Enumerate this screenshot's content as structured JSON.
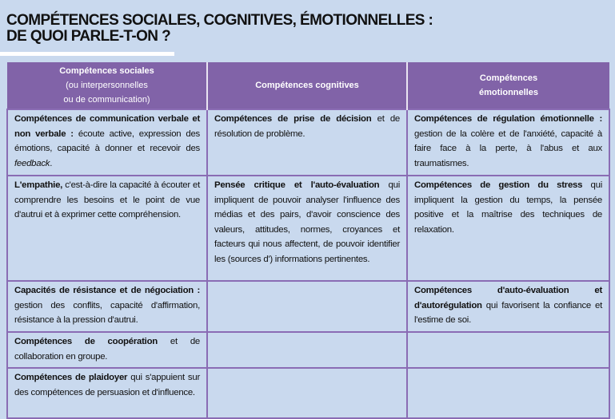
{
  "title": {
    "line1": "COMPÉTENCES SOCIALES, COGNITIVES, ÉMOTIONNELLES :",
    "line2": "DE QUOI PARLE-T-ON ?"
  },
  "colors": {
    "background": "#c9d9ee",
    "header": "#8163a8",
    "border": "#8a6cb4"
  },
  "headers": [
    {
      "l1": "Compétences sociales",
      "l2": "(ou interpersonnelles",
      "l3": "ou de communication)"
    },
    {
      "l1": "Compétences cognitives"
    },
    {
      "l1": "Compétences",
      "l2": "émotionnelles"
    }
  ],
  "rows": [
    [
      {
        "bold": "Compétences de communication verbale et non verbale :",
        "text": " écoute active, expression des émotions, capacité à donner et recevoir des ",
        "italic": "feedback",
        "tail": "."
      },
      {
        "bold": "Compétences de prise de décision",
        "text": " et de résolution de problème."
      },
      {
        "bold": "Compétences de régulation émotionnelle :",
        "text": " gestion de la colère et de l'anxiété, capacité à faire face à la perte, à l'abus et aux traumatismes."
      }
    ],
    [
      {
        "bold": "L'empathie,",
        "text": " c'est-à-dire la capacité à écouter et comprendre les besoins et le point de vue d'autrui et à exprimer cette compréhension."
      },
      {
        "bold": "Pensée critique et l'auto-évaluation",
        "text": " qui impliquent de pouvoir analyser l'influence des médias et des pairs, d'avoir conscience des valeurs, attitudes, normes, croyances et facteurs qui nous affectent, de pouvoir identifier les (sources d') informations pertinentes."
      },
      {
        "bold": "Compétences de gestion du stress",
        "text": " qui impliquent la gestion du temps, la pensée positive et la maîtrise des techniques de relaxation."
      }
    ],
    [
      {
        "bold": "Capacités de résistance et de négociation :",
        "text": " gestion des conflits, capacité d'affirmation, résistance à la pression d'autrui."
      },
      {},
      {
        "bold": "Compétences d'auto-évaluation et d'autorégulation",
        "text": " qui favorisent la confiance et l'estime de soi."
      }
    ],
    [
      {
        "bold": "Compétences de coopération",
        "text": " et de collaboration en groupe."
      },
      {},
      {}
    ],
    [
      {
        "bold": "Compétences de plaidoyer",
        "text": " qui s'appuient sur des compétences de persuasion et d'influence."
      },
      {},
      {}
    ]
  ]
}
